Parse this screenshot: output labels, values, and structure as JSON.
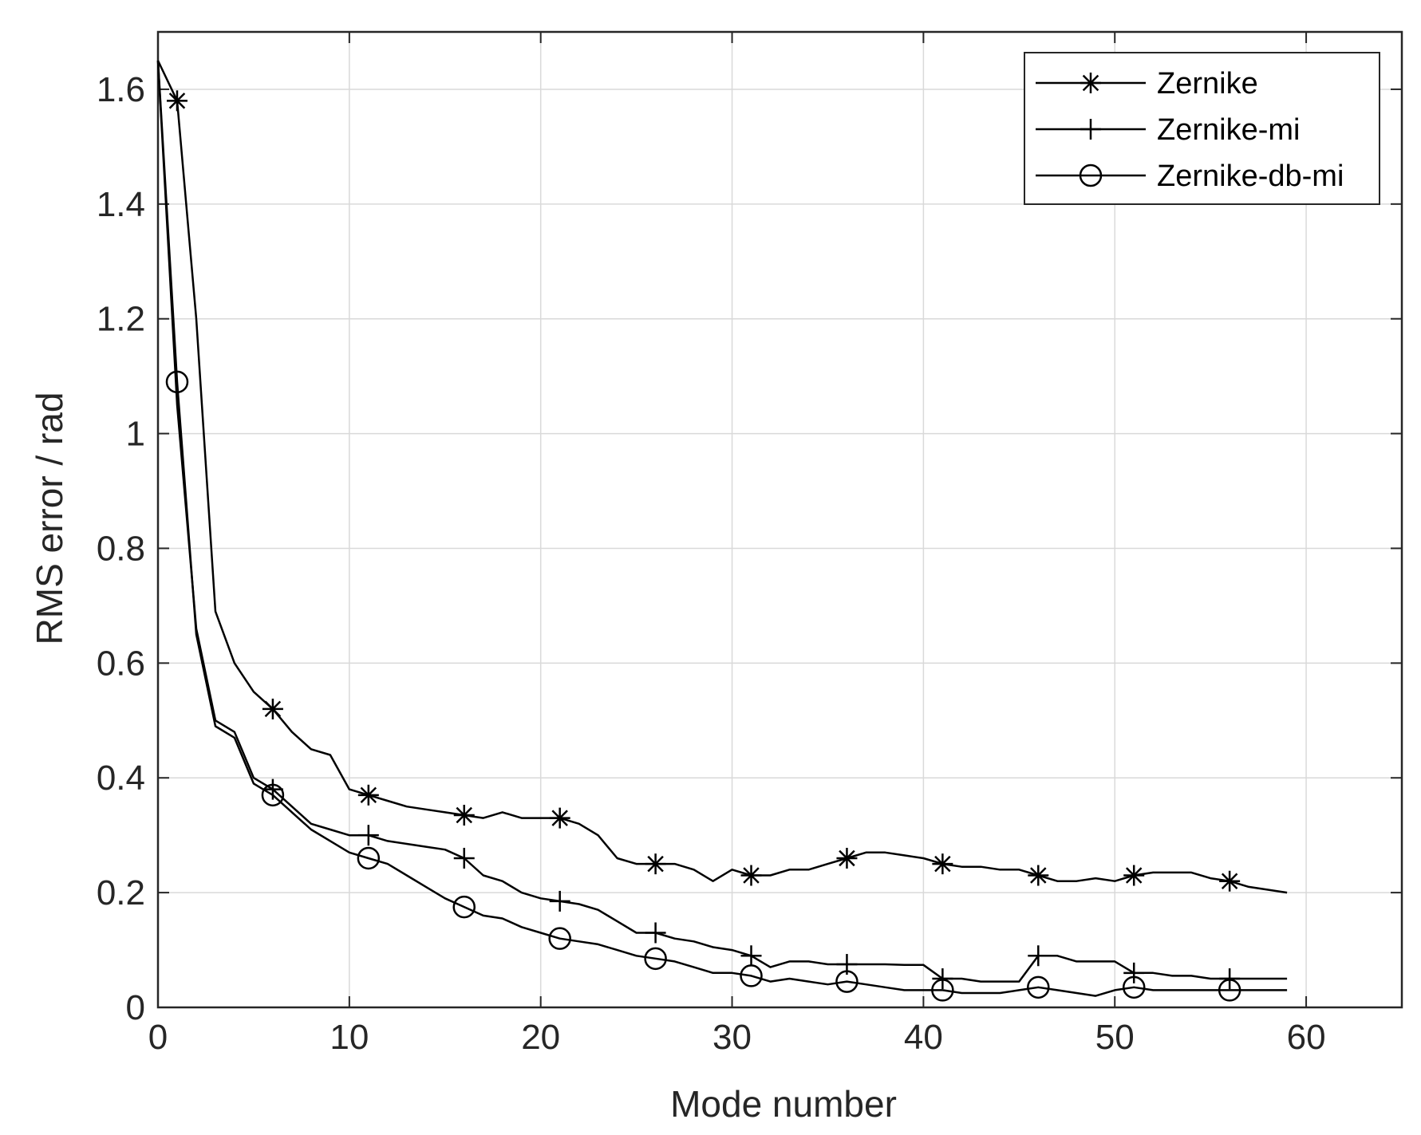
{
  "chart_data": {
    "type": "line",
    "title": "",
    "xlabel": "Mode number",
    "ylabel": "RMS error / rad",
    "xlim": [
      0,
      65
    ],
    "ylim": [
      0,
      1.7
    ],
    "xticks": [
      0,
      10,
      20,
      30,
      40,
      50,
      60
    ],
    "yticks": [
      0,
      0.2,
      0.4,
      0.6,
      0.8,
      1,
      1.2,
      1.4,
      1.6
    ],
    "xtick_labels": [
      "0",
      "10",
      "20",
      "30",
      "40",
      "50",
      "60"
    ],
    "ytick_labels": [
      "0",
      "0.2",
      "0.4",
      "0.6",
      "0.8",
      "1",
      "1.2",
      "1.4",
      "1.6"
    ],
    "grid": true,
    "legend_position": "top-right",
    "colors": {
      "line": "#000000",
      "grid": "#d9d9d9",
      "axis": "#262626",
      "background": "#ffffff"
    },
    "series": [
      {
        "name": "Zernike",
        "marker": "asterisk",
        "x": [
          0,
          1,
          2,
          3,
          4,
          5,
          6,
          7,
          8,
          9,
          10,
          11,
          12,
          13,
          14,
          15,
          16,
          17,
          18,
          19,
          20,
          21,
          22,
          23,
          24,
          25,
          26,
          27,
          28,
          29,
          30,
          31,
          32,
          33,
          34,
          35,
          36,
          37,
          38,
          39,
          40,
          41,
          42,
          43,
          44,
          45,
          46,
          47,
          48,
          49,
          50,
          51,
          52,
          53,
          54,
          55,
          56,
          57,
          58,
          59
        ],
        "y": [
          1.65,
          1.58,
          1.2,
          0.69,
          0.6,
          0.55,
          0.52,
          0.48,
          0.45,
          0.44,
          0.38,
          0.37,
          0.36,
          0.35,
          0.345,
          0.34,
          0.335,
          0.33,
          0.34,
          0.33,
          0.33,
          0.33,
          0.32,
          0.3,
          0.26,
          0.25,
          0.25,
          0.25,
          0.24,
          0.22,
          0.24,
          0.23,
          0.23,
          0.24,
          0.24,
          0.25,
          0.26,
          0.27,
          0.27,
          0.265,
          0.26,
          0.25,
          0.245,
          0.245,
          0.24,
          0.24,
          0.23,
          0.22,
          0.22,
          0.225,
          0.22,
          0.23,
          0.235,
          0.235,
          0.235,
          0.225,
          0.22,
          0.21,
          0.205,
          0.2
        ],
        "marker_x": [
          1,
          6,
          11,
          16,
          21,
          26,
          31,
          36,
          41,
          46,
          51,
          56
        ]
      },
      {
        "name": "Zernike-mi",
        "marker": "plus",
        "x": [
          0,
          1,
          2,
          3,
          4,
          5,
          6,
          7,
          8,
          9,
          10,
          11,
          12,
          13,
          14,
          15,
          16,
          17,
          18,
          19,
          20,
          21,
          22,
          23,
          24,
          25,
          26,
          27,
          28,
          29,
          30,
          31,
          32,
          33,
          34,
          35,
          36,
          37,
          38,
          39,
          40,
          41,
          42,
          43,
          44,
          45,
          46,
          47,
          48,
          49,
          50,
          51,
          52,
          53,
          54,
          55,
          56,
          57,
          58,
          59
        ],
        "y": [
          1.65,
          1.05,
          0.66,
          0.5,
          0.48,
          0.4,
          0.38,
          0.35,
          0.32,
          0.31,
          0.3,
          0.3,
          0.29,
          0.285,
          0.28,
          0.275,
          0.26,
          0.23,
          0.22,
          0.2,
          0.19,
          0.185,
          0.18,
          0.17,
          0.15,
          0.13,
          0.13,
          0.12,
          0.115,
          0.105,
          0.1,
          0.09,
          0.07,
          0.08,
          0.08,
          0.075,
          0.075,
          0.075,
          0.075,
          0.074,
          0.074,
          0.05,
          0.05,
          0.045,
          0.045,
          0.045,
          0.09,
          0.09,
          0.08,
          0.08,
          0.08,
          0.06,
          0.06,
          0.055,
          0.055,
          0.05,
          0.05,
          0.05,
          0.05,
          0.05
        ],
        "marker_x": [
          6,
          11,
          16,
          21,
          26,
          31,
          36,
          41,
          46,
          51,
          56
        ]
      },
      {
        "name": "Zernike-db-mi",
        "marker": "circle",
        "x": [
          0,
          1,
          2,
          3,
          4,
          5,
          6,
          7,
          8,
          9,
          10,
          11,
          12,
          13,
          14,
          15,
          16,
          17,
          18,
          19,
          20,
          21,
          22,
          23,
          24,
          25,
          26,
          27,
          28,
          29,
          30,
          31,
          32,
          33,
          34,
          35,
          36,
          37,
          38,
          39,
          40,
          41,
          42,
          43,
          44,
          45,
          46,
          47,
          48,
          49,
          50,
          51,
          52,
          53,
          54,
          55,
          56,
          57,
          58,
          59
        ],
        "y": [
          1.65,
          1.09,
          0.65,
          0.49,
          0.47,
          0.39,
          0.37,
          0.34,
          0.31,
          0.29,
          0.27,
          0.26,
          0.25,
          0.23,
          0.21,
          0.19,
          0.175,
          0.16,
          0.155,
          0.14,
          0.13,
          0.12,
          0.115,
          0.11,
          0.1,
          0.09,
          0.085,
          0.08,
          0.07,
          0.06,
          0.06,
          0.055,
          0.045,
          0.05,
          0.045,
          0.04,
          0.045,
          0.04,
          0.035,
          0.03,
          0.03,
          0.03,
          0.025,
          0.025,
          0.025,
          0.03,
          0.035,
          0.03,
          0.025,
          0.02,
          0.03,
          0.035,
          0.03,
          0.03,
          0.03,
          0.03,
          0.03,
          0.03,
          0.03,
          0.03
        ],
        "marker_x": [
          1,
          6,
          11,
          16,
          21,
          26,
          31,
          36,
          41,
          46,
          51,
          56
        ]
      }
    ]
  }
}
